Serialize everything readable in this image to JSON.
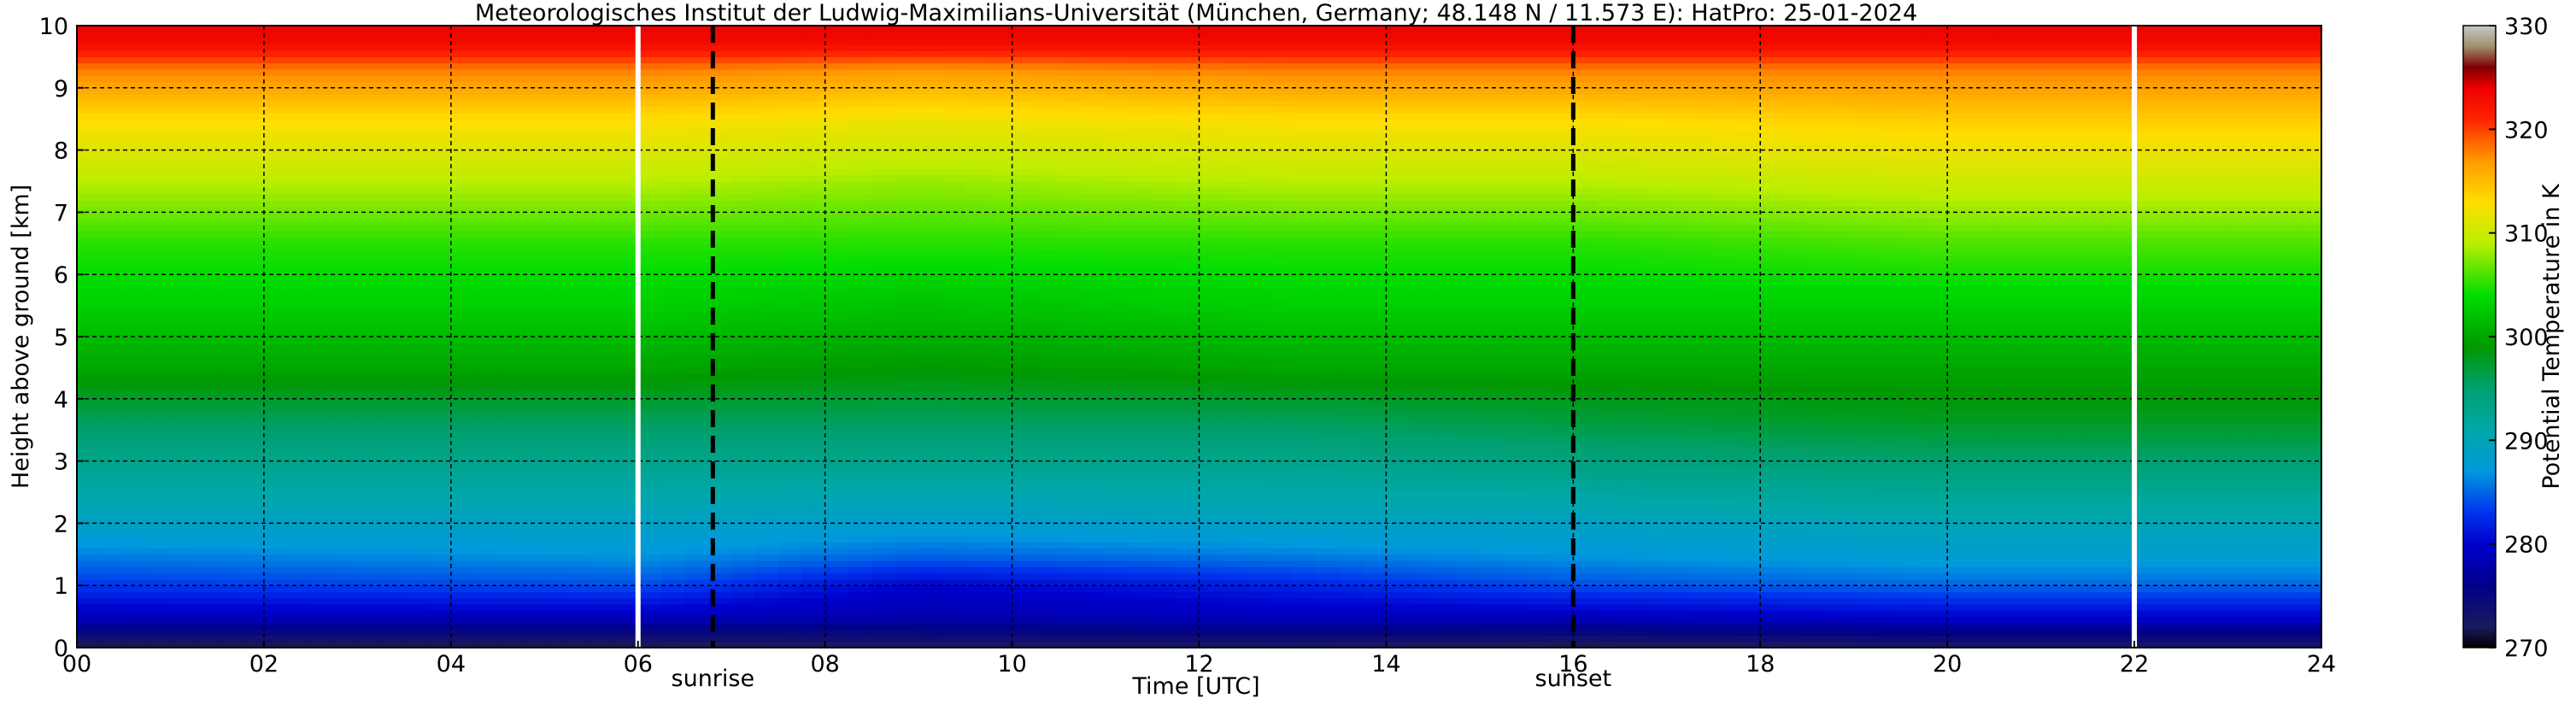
{
  "chart_data": {
    "type": "heatmap",
    "title": "Meteorologisches Institut der Ludwig-Maximilians-Universität (München, Germany; 48.148 N / 11.573 E):    HatPro: 25-01-2024",
    "xlabel": "Time [UTC]",
    "ylabel": "Height above ground [km]",
    "xlim": [
      0,
      24
    ],
    "ylim": [
      0,
      10
    ],
    "x_ticks": [
      "00",
      "02",
      "04",
      "06",
      "08",
      "10",
      "12",
      "14",
      "16",
      "18",
      "20",
      "22",
      "24"
    ],
    "y_ticks": [
      "0",
      "1",
      "2",
      "3",
      "4",
      "5",
      "6",
      "7",
      "8",
      "9",
      "10"
    ],
    "grid": true,
    "colorbar": {
      "label": "Potential Temperature in K",
      "range": [
        270,
        330
      ],
      "ticks": [
        "270",
        "280",
        "290",
        "300",
        "310",
        "320",
        "330"
      ]
    },
    "vertical_markers": [
      {
        "x": 6.8,
        "label": "sunrise",
        "style": "dashed"
      },
      {
        "x": 16.0,
        "label": "sunset",
        "style": "dashed"
      },
      {
        "x": 6.0,
        "label": "",
        "style": "white-gap"
      },
      {
        "x": 22.0,
        "label": "",
        "style": "white-gap"
      }
    ],
    "profile_heights_km": [
      0,
      0.5,
      1,
      1.5,
      2,
      3,
      3.7,
      4.5,
      5.5,
      6.5,
      7.5,
      8.5,
      9.3,
      9.7,
      10
    ],
    "profiles": [
      {
        "time": 0,
        "theta": [
          271,
          279,
          283,
          286,
          289,
          293,
          296,
          300,
          303,
          305,
          309,
          313,
          318,
          323,
          324
        ]
      },
      {
        "time": 6,
        "theta": [
          271,
          279,
          284,
          287,
          289,
          293,
          296,
          300,
          303,
          305,
          309,
          313,
          318,
          323,
          324
        ]
      },
      {
        "time": 9,
        "theta": [
          272,
          278,
          280,
          285,
          288,
          293,
          296,
          299,
          302,
          305,
          308,
          312,
          317,
          323,
          324
        ]
      },
      {
        "time": 13,
        "theta": [
          272,
          279,
          282,
          286,
          289,
          293,
          296,
          300,
          303,
          305,
          309,
          313,
          318,
          323,
          324
        ]
      },
      {
        "time": 16,
        "theta": [
          271,
          279,
          284,
          287,
          289,
          294,
          297,
          300,
          303,
          305,
          309,
          313,
          318,
          323,
          324
        ]
      },
      {
        "time": 20,
        "theta": [
          272,
          280,
          285,
          288,
          290,
          295,
          298,
          300,
          303,
          306,
          310,
          314,
          318,
          323,
          324
        ]
      },
      {
        "time": 24,
        "theta": [
          272,
          280,
          285,
          288,
          290,
          295,
          298,
          300,
          303,
          306,
          310,
          314,
          318,
          323,
          324
        ]
      }
    ],
    "colormap": [
      {
        "value": 270,
        "color": "#000000"
      },
      {
        "value": 272,
        "color": "#1a1a5e"
      },
      {
        "value": 276,
        "color": "#00008b"
      },
      {
        "value": 280,
        "color": "#0000cd"
      },
      {
        "value": 283,
        "color": "#0033ee"
      },
      {
        "value": 287,
        "color": "#0099dd"
      },
      {
        "value": 291,
        "color": "#00a8a8"
      },
      {
        "value": 295,
        "color": "#00a070"
      },
      {
        "value": 299,
        "color": "#009900"
      },
      {
        "value": 304,
        "color": "#00dd00"
      },
      {
        "value": 309,
        "color": "#bbee00"
      },
      {
        "value": 313,
        "color": "#ffdd00"
      },
      {
        "value": 317,
        "color": "#ff9900"
      },
      {
        "value": 321,
        "color": "#ff2200"
      },
      {
        "value": 324,
        "color": "#ee0000"
      },
      {
        "value": 326,
        "color": "#800000"
      },
      {
        "value": 328,
        "color": "#a09070"
      },
      {
        "value": 330,
        "color": "#c8c8c8"
      }
    ]
  }
}
